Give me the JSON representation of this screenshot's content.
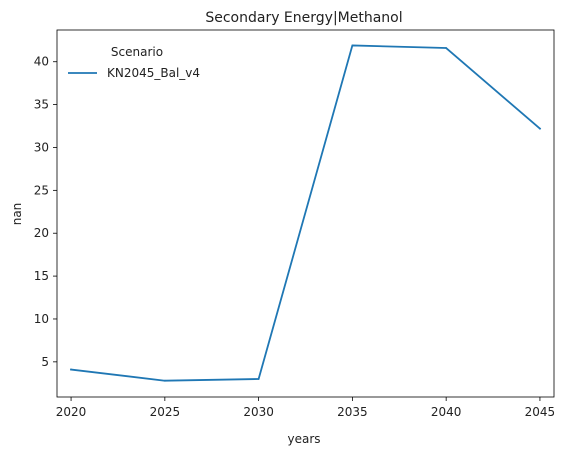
{
  "chart_data": {
    "type": "line",
    "title": "Secondary Energy|Methanol",
    "xlabel": "years",
    "ylabel": "nan",
    "x": [
      2020,
      2025,
      2030,
      2035,
      2040,
      2045
    ],
    "xticks": [
      2020,
      2025,
      2030,
      2035,
      2040,
      2045
    ],
    "yticks": [
      5,
      10,
      15,
      20,
      25,
      30,
      35,
      40
    ],
    "xlim": [
      2019.25,
      2045.75
    ],
    "ylim": [
      0.9,
      43.7
    ],
    "grid": false,
    "legend": {
      "title": "Scenario",
      "placement": "top-left"
    },
    "series": [
      {
        "name": "KN2045_Bal_v4",
        "color": "#1f77b4",
        "values": [
          4.1,
          2.8,
          3.0,
          41.9,
          41.6,
          32.2
        ]
      }
    ]
  }
}
